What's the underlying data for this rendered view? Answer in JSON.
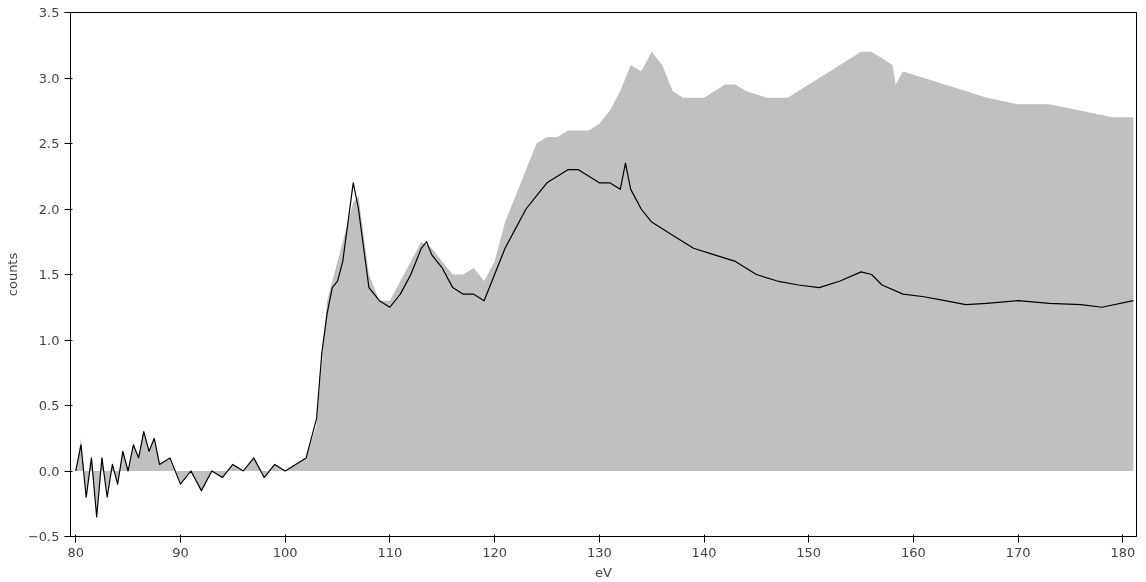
{
  "chart_data": {
    "type": "area",
    "xlabel": "eV",
    "ylabel": "counts",
    "xlim": [
      79.5,
      181.3
    ],
    "ylim": [
      -0.5,
      3.5
    ],
    "xticks": [
      80,
      90,
      100,
      110,
      120,
      130,
      140,
      150,
      160,
      170,
      180
    ],
    "yticks": [
      {
        "value": -0.5,
        "label": "−0.5"
      },
      {
        "value": 0,
        "label": "0.0"
      },
      {
        "value": 0.5,
        "label": "0.5"
      },
      {
        "value": 1,
        "label": "1.0"
      },
      {
        "value": 1.5,
        "label": "1.5"
      },
      {
        "value": 2,
        "label": "2.0"
      },
      {
        "value": 2.5,
        "label": "2.5"
      },
      {
        "value": 3,
        "label": "3.0"
      },
      {
        "value": 3.5,
        "label": "3.5"
      }
    ],
    "grid": false,
    "series": [
      {
        "color": "#c0c0c0",
        "x": [
          80,
          80.5,
          81,
          81.5,
          82,
          82.5,
          83,
          83.5,
          84,
          84.5,
          85,
          85.5,
          86,
          86.5,
          87,
          87.5,
          88,
          89,
          90,
          91,
          92,
          93,
          94,
          95,
          96,
          97,
          98,
          99,
          100,
          101,
          102,
          103,
          104,
          105,
          106,
          106.5,
          107,
          108,
          109,
          110,
          111,
          112,
          113,
          114,
          115,
          116,
          117,
          118,
          119,
          120,
          121,
          122,
          123,
          124,
          125,
          126,
          127,
          128,
          129,
          130,
          131,
          132,
          133,
          134,
          135,
          136,
          137,
          138,
          140,
          142,
          143,
          144,
          146,
          148,
          150,
          152,
          154,
          155,
          156,
          157,
          158,
          158.3,
          159,
          161,
          163,
          165,
          167,
          170,
          173,
          176,
          179,
          181
        ],
        "values": [
          0.0,
          0.25,
          -0.15,
          0.1,
          -0.3,
          0.1,
          -0.15,
          0.05,
          -0.1,
          0.15,
          0.0,
          0.2,
          0.1,
          0.3,
          0.15,
          0.25,
          0.05,
          0.1,
          -0.1,
          0.0,
          -0.15,
          0.0,
          -0.05,
          0.05,
          0.0,
          0.1,
          -0.05,
          0.05,
          0.0,
          0.05,
          0.1,
          0.35,
          1.3,
          1.6,
          1.9,
          2.05,
          2.1,
          1.5,
          1.3,
          1.3,
          1.45,
          1.6,
          1.75,
          1.7,
          1.6,
          1.5,
          1.5,
          1.55,
          1.45,
          1.6,
          1.9,
          2.1,
          2.3,
          2.5,
          2.55,
          2.55,
          2.6,
          2.6,
          2.6,
          2.65,
          2.75,
          2.9,
          3.1,
          3.05,
          3.2,
          3.1,
          2.9,
          2.85,
          2.85,
          2.95,
          2.95,
          2.9,
          2.85,
          2.85,
          2.95,
          3.05,
          3.15,
          3.2,
          3.2,
          3.15,
          3.1,
          2.95,
          3.05,
          3.0,
          2.95,
          2.9,
          2.85,
          2.8,
          2.8,
          2.75,
          2.7,
          2.7
        ]
      },
      {
        "type": "line",
        "color": "#000000",
        "x": [
          80,
          80.5,
          81,
          81.5,
          82,
          82.5,
          83,
          83.5,
          84,
          84.5,
          85,
          85.5,
          86,
          86.5,
          87,
          87.5,
          88,
          89,
          90,
          91,
          92,
          93,
          94,
          95,
          96,
          97,
          98,
          99,
          100,
          101,
          102,
          103,
          103.5,
          104,
          104.5,
          105,
          105.5,
          106,
          106.5,
          107,
          107.5,
          108,
          109,
          110,
          111,
          112,
          113,
          113.5,
          114,
          115,
          116,
          117,
          118,
          119,
          120,
          121,
          122,
          123,
          124,
          125,
          126,
          127,
          128,
          129,
          130,
          131,
          132,
          132.5,
          133,
          134,
          135,
          137,
          139,
          141,
          143,
          145,
          147,
          149,
          151,
          153,
          155,
          156,
          157,
          159,
          161,
          163,
          165,
          167,
          170,
          173,
          176,
          178,
          181
        ],
        "values": [
          0.0,
          0.2,
          -0.2,
          0.1,
          -0.35,
          0.1,
          -0.2,
          0.05,
          -0.1,
          0.15,
          0.0,
          0.2,
          0.1,
          0.3,
          0.15,
          0.25,
          0.05,
          0.1,
          -0.1,
          0.0,
          -0.15,
          0.0,
          -0.05,
          0.05,
          0.0,
          0.1,
          -0.05,
          0.05,
          0.0,
          0.05,
          0.1,
          0.4,
          0.9,
          1.2,
          1.4,
          1.45,
          1.6,
          1.9,
          2.2,
          2.0,
          1.7,
          1.4,
          1.3,
          1.25,
          1.35,
          1.5,
          1.7,
          1.75,
          1.65,
          1.55,
          1.4,
          1.35,
          1.35,
          1.3,
          1.5,
          1.7,
          1.85,
          2.0,
          2.1,
          2.2,
          2.25,
          2.3,
          2.3,
          2.25,
          2.2,
          2.2,
          2.15,
          2.35,
          2.15,
          2.0,
          1.9,
          1.8,
          1.7,
          1.65,
          1.6,
          1.5,
          1.45,
          1.42,
          1.4,
          1.45,
          1.52,
          1.5,
          1.42,
          1.35,
          1.33,
          1.3,
          1.27,
          1.28,
          1.3,
          1.28,
          1.27,
          1.25,
          1.3
        ]
      }
    ]
  }
}
